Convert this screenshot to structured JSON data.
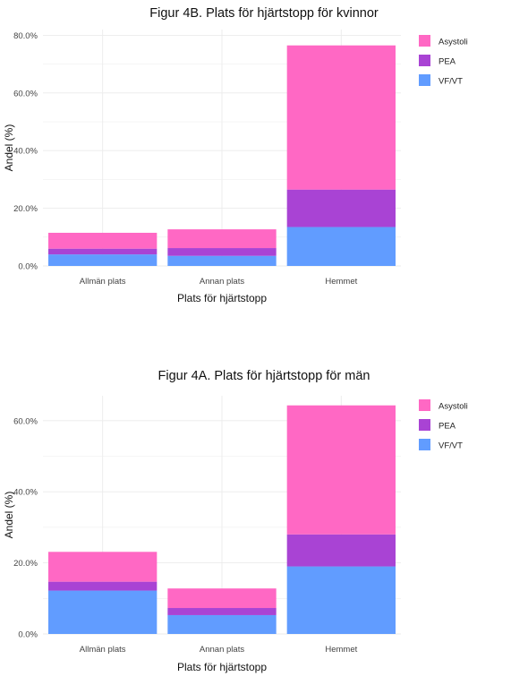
{
  "chart_data": [
    {
      "type": "bar",
      "stacked": true,
      "title": "Figur 4B. Plats för hjärtstopp för kvinnor",
      "xlabel": "Plats för hjärtstopp",
      "ylabel": "Andel (%)",
      "categories": [
        "Allmän plats",
        "Annan plats",
        "Hemmet"
      ],
      "yticks": [
        "0.0%",
        "20.0%",
        "40.0%",
        "60.0%",
        "80.0%"
      ],
      "ylim": [
        0,
        82
      ],
      "grid": true,
      "legend": "right",
      "series": [
        {
          "name": "VF/VT",
          "color": "#619CFF",
          "values": [
            4.0,
            3.5,
            13.5
          ]
        },
        {
          "name": "PEA",
          "color": "#A943D4",
          "values": [
            2.0,
            2.7,
            13.0
          ]
        },
        {
          "name": "Asystoli",
          "color": "#FF68C4",
          "values": [
            5.5,
            6.5,
            50.0
          ]
        }
      ]
    },
    {
      "type": "bar",
      "stacked": true,
      "title": "Figur 4A. Plats för hjärtstopp för män",
      "xlabel": "Plats för hjärtstopp",
      "ylabel": "Andel (%)",
      "categories": [
        "Allmän plats",
        "Annan plats",
        "Hemmet"
      ],
      "yticks": [
        "0.0%",
        "20.0%",
        "40.0%",
        "60.0%"
      ],
      "ylim": [
        0,
        67
      ],
      "grid": true,
      "legend": "right",
      "series": [
        {
          "name": "VF/VT",
          "color": "#619CFF",
          "values": [
            12.2,
            5.3,
            19.0
          ]
        },
        {
          "name": "PEA",
          "color": "#A943D4",
          "values": [
            2.5,
            2.0,
            9.0
          ]
        },
        {
          "name": "Asystoli",
          "color": "#FF68C4",
          "values": [
            8.4,
            5.5,
            36.3
          ]
        }
      ]
    }
  ]
}
